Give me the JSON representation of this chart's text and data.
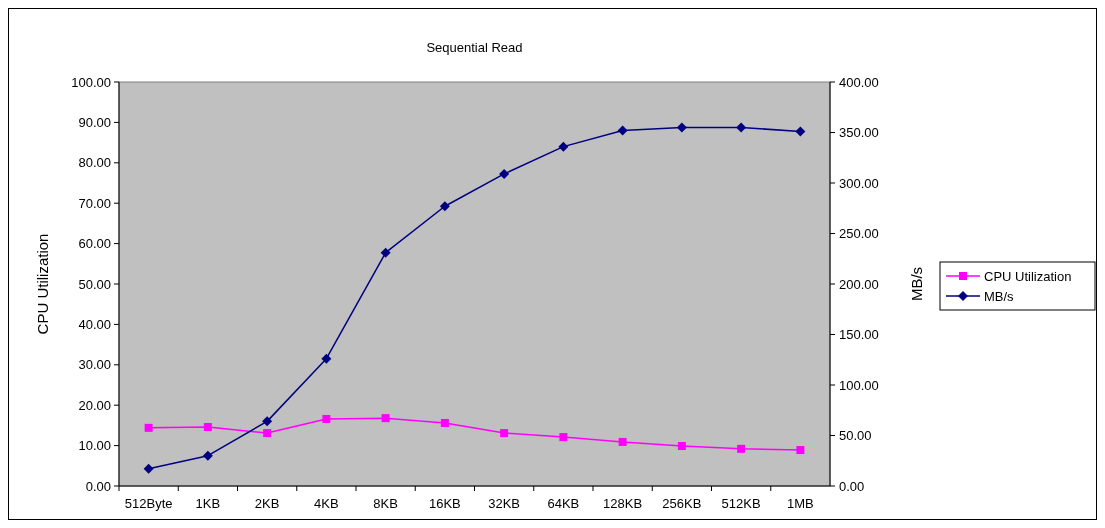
{
  "chart_data": {
    "type": "line",
    "title": "Sequential Read",
    "ylabel": "CPU Utilization",
    "y2label": "MB/s",
    "categories": [
      "512Byte",
      "1KB",
      "2KB",
      "4KB",
      "8KB",
      "16KB",
      "32KB",
      "64KB",
      "128KB",
      "256KB",
      "512KB",
      "1MB"
    ],
    "series": [
      {
        "name": "CPU Utilization",
        "color": "#ff00ff",
        "marker": "square",
        "values": [
          14.4,
          14.6,
          13.1,
          16.6,
          16.8,
          15.6,
          13.1,
          12.1,
          10.9,
          9.9,
          9.2,
          8.9
        ]
      },
      {
        "name": "MB/s",
        "color": "#000080",
        "marker": "diamond",
        "axis": "y2",
        "values": [
          17,
          30,
          64,
          126,
          231,
          277,
          309,
          336,
          352,
          355,
          355,
          351
        ]
      }
    ],
    "ylim": [
      0,
      100
    ],
    "yticks": [
      {
        "value": 0,
        "label": "0.00"
      },
      {
        "value": 10,
        "label": "10.00"
      },
      {
        "value": 20,
        "label": "20.00"
      },
      {
        "value": 30,
        "label": "30.00"
      },
      {
        "value": 40,
        "label": "40.00"
      },
      {
        "value": 50,
        "label": "50.00"
      },
      {
        "value": 60,
        "label": "60.00"
      },
      {
        "value": 70,
        "label": "70.00"
      },
      {
        "value": 80,
        "label": "80.00"
      },
      {
        "value": 90,
        "label": "90.00"
      },
      {
        "value": 100,
        "label": "100.00"
      }
    ],
    "y2lim": [
      0,
      400
    ],
    "y2ticks": [
      {
        "value": 0,
        "label": "0.00"
      },
      {
        "value": 50,
        "label": "50.00"
      },
      {
        "value": 100,
        "label": "100.00"
      },
      {
        "value": 150,
        "label": "150.00"
      },
      {
        "value": 200,
        "label": "200.00"
      },
      {
        "value": 250,
        "label": "250.00"
      },
      {
        "value": 300,
        "label": "300.00"
      },
      {
        "value": 350,
        "label": "350.00"
      },
      {
        "value": 400,
        "label": "400.00"
      }
    ],
    "grid": false,
    "legend": "right"
  }
}
